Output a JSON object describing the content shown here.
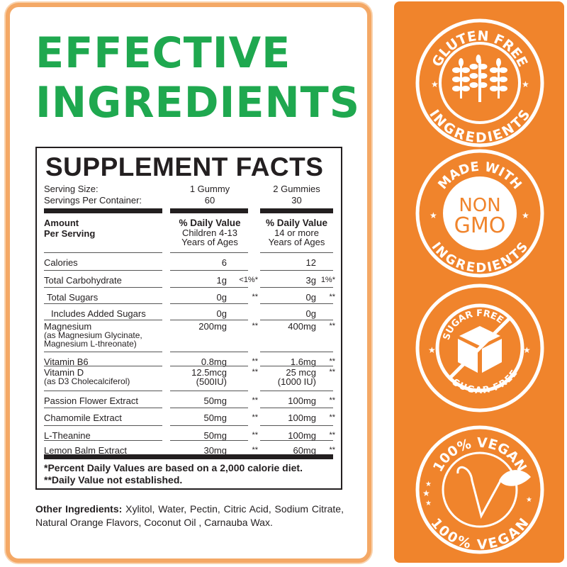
{
  "headline": {
    "line1": "EFFECTIVE",
    "line2": "INGREDIENTS"
  },
  "facts": {
    "title": "SUPPLEMENT FACTS",
    "serving_size": {
      "label": "Serving Size:",
      "col1": "1 Gummy",
      "col2": "2 Gummies"
    },
    "servings_per_container": {
      "label": "Servings Per Container:",
      "col1": "60",
      "col2": "30"
    },
    "header": {
      "amount": "Amount",
      "per_serving": "Per Serving",
      "dv": "% Daily Value",
      "col1_sub1": "Children 4-13",
      "col1_sub2": "Years of Ages",
      "col2_sub1": "14 or more",
      "col2_sub2": "Years of Ages"
    },
    "rows": [
      {
        "name": "Calories",
        "v1": "6",
        "p1": "",
        "v2": "12",
        "p2": ""
      },
      {
        "name": "Total Carbohydrate",
        "v1": "1g",
        "p1": "<1%*",
        "v2": "3g",
        "p2": "1%*"
      },
      {
        "name": "Total Sugars",
        "v1": "0g",
        "p1": "**",
        "v2": "0g",
        "p2": "**"
      },
      {
        "name": "Includes Added Sugars",
        "v1": "0g",
        "p1": "",
        "v2": "0g",
        "p2": ""
      },
      {
        "name": "Magnesium",
        "sub1": "(as Magnesium Glycinate,",
        "sub2": "Magnesium L-threonate)",
        "v1": "200mg",
        "p1": "**",
        "v2": "400mg",
        "p2": "**"
      },
      {
        "name": "Vitamin B6",
        "v1": "0.8mg",
        "p1": "**",
        "v2": "1.6mg",
        "p2": "**"
      },
      {
        "name": "Vitamin D",
        "sub1": "(as D3 Cholecalciferol)",
        "v1": "12.5mcg",
        "v1b": "(500IU)",
        "p1": "**",
        "v2": "25 mcg",
        "v2b": "(1000 IU)",
        "p2": "**"
      },
      {
        "name": "Passion Flower Extract",
        "v1": "50mg",
        "p1": "**",
        "v2": "100mg",
        "p2": "**"
      },
      {
        "name": "Chamomile Extract",
        "v1": "50mg",
        "p1": "**",
        "v2": "100mg",
        "p2": "**"
      },
      {
        "name": "L-Theanine",
        "v1": "50mg",
        "p1": "**",
        "v2": "100mg",
        "p2": "**"
      },
      {
        "name": "Lemon Balm Extract",
        "v1": "30mg",
        "p1": "**",
        "v2": "60mg",
        "p2": "**"
      }
    ],
    "footnote1": "*Percent Daily Values are based on a 2,000 calorie diet.",
    "footnote2": "**Daily Value not established."
  },
  "other_ingredients": {
    "label": "Other Ingredients:",
    "text": " Xylitol, Water, Pectin, Citric Acid, Sodium Citrate, Natural Orange Flavors, Coconut Oil , Carnauba Wax."
  },
  "badges": [
    {
      "top": "GLUTEN FREE",
      "bottom": "INGREDIENTS",
      "icon": "wheat-icon"
    },
    {
      "top": "MADE WITH",
      "bottom": "INGREDIENTS",
      "center1": "NON",
      "center2": "GMO",
      "icon": "non-gmo-icon"
    },
    {
      "top": "SUGAR FREE",
      "bottom": "SUGAR FREE",
      "right": "SUGAR",
      "icon": "sugar-cube-icon"
    },
    {
      "top": "100% VEGAN",
      "bottom": "100% VEGAN",
      "icon": "vegan-v-leaf-icon"
    }
  ],
  "colors": {
    "headline": "#1fa84f",
    "panel": "#f0842c",
    "card_border": "#f4a865",
    "text": "#231f20"
  }
}
